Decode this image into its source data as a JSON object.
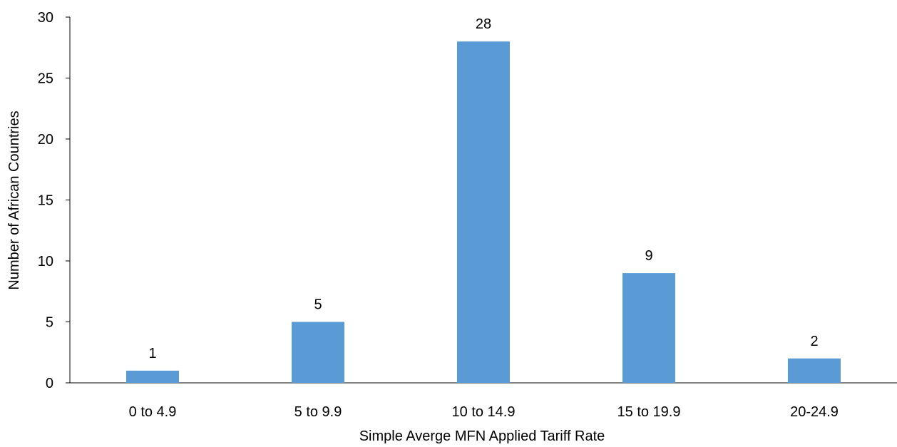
{
  "chart_data": {
    "type": "bar",
    "title": "",
    "xlabel": "Simple Averge MFN Applied Tariff Rate",
    "ylabel": "Number of African Countries",
    "categories": [
      "0 to 4.9",
      "5 to 9.9",
      "10 to 14.9",
      "15 to 19.9",
      "20-24.9"
    ],
    "values": [
      1,
      5,
      28,
      9,
      2
    ],
    "data_labels": [
      "1",
      "5",
      "28",
      "9",
      "2"
    ],
    "ylim": [
      0,
      30
    ],
    "yticks": [
      0,
      5,
      10,
      15,
      20,
      25,
      30
    ],
    "grid": false,
    "legend": "none",
    "bar_color": "#5b9bd5",
    "axis_color": "#000000"
  }
}
